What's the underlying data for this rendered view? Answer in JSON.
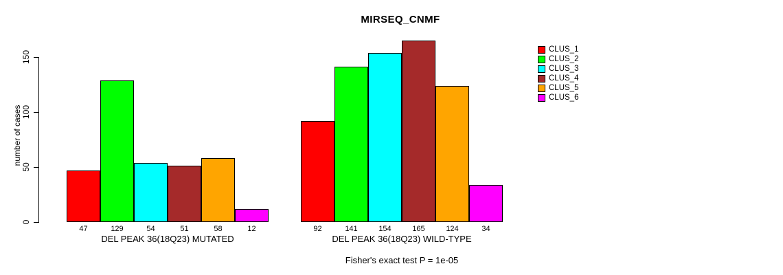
{
  "title": "MIRSEQ_CNMF",
  "y_axis": {
    "label": "number of cases",
    "ticks": [
      0,
      50,
      100,
      150
    ]
  },
  "legend": {
    "items": [
      {
        "label": "CLUS_1",
        "color": "#FF0000"
      },
      {
        "label": "CLUS_2",
        "color": "#00FF00"
      },
      {
        "label": "CLUS_3",
        "color": "#00FFFF"
      },
      {
        "label": "CLUS_4",
        "color": "#A52A2A"
      },
      {
        "label": "CLUS_5",
        "color": "#FFA500"
      },
      {
        "label": "CLUS_6",
        "color": "#FF00FF"
      }
    ]
  },
  "footer": "Fisher's exact test P = 1e-05",
  "chart_data": {
    "type": "bar",
    "title": "MIRSEQ_CNMF",
    "xlabel": "",
    "ylabel": "number of cases",
    "ylim": [
      0,
      165
    ],
    "yticks": [
      0,
      50,
      100,
      150
    ],
    "grid": false,
    "legend_position": "right-outside",
    "categories": [
      "CLUS_1",
      "CLUS_2",
      "CLUS_3",
      "CLUS_4",
      "CLUS_5",
      "CLUS_6"
    ],
    "colors": [
      "#FF0000",
      "#00FF00",
      "#00FFFF",
      "#A52A2A",
      "#FFA500",
      "#FF00FF"
    ],
    "groups": [
      {
        "label": "DEL PEAK 36(18Q23) MUTATED",
        "values": [
          47,
          129,
          54,
          51,
          58,
          12
        ]
      },
      {
        "label": "DEL PEAK 36(18Q23) WILD-TYPE",
        "values": [
          92,
          141,
          154,
          165,
          124,
          34
        ]
      }
    ],
    "annotation": "Fisher's exact test P = 1e-05"
  }
}
